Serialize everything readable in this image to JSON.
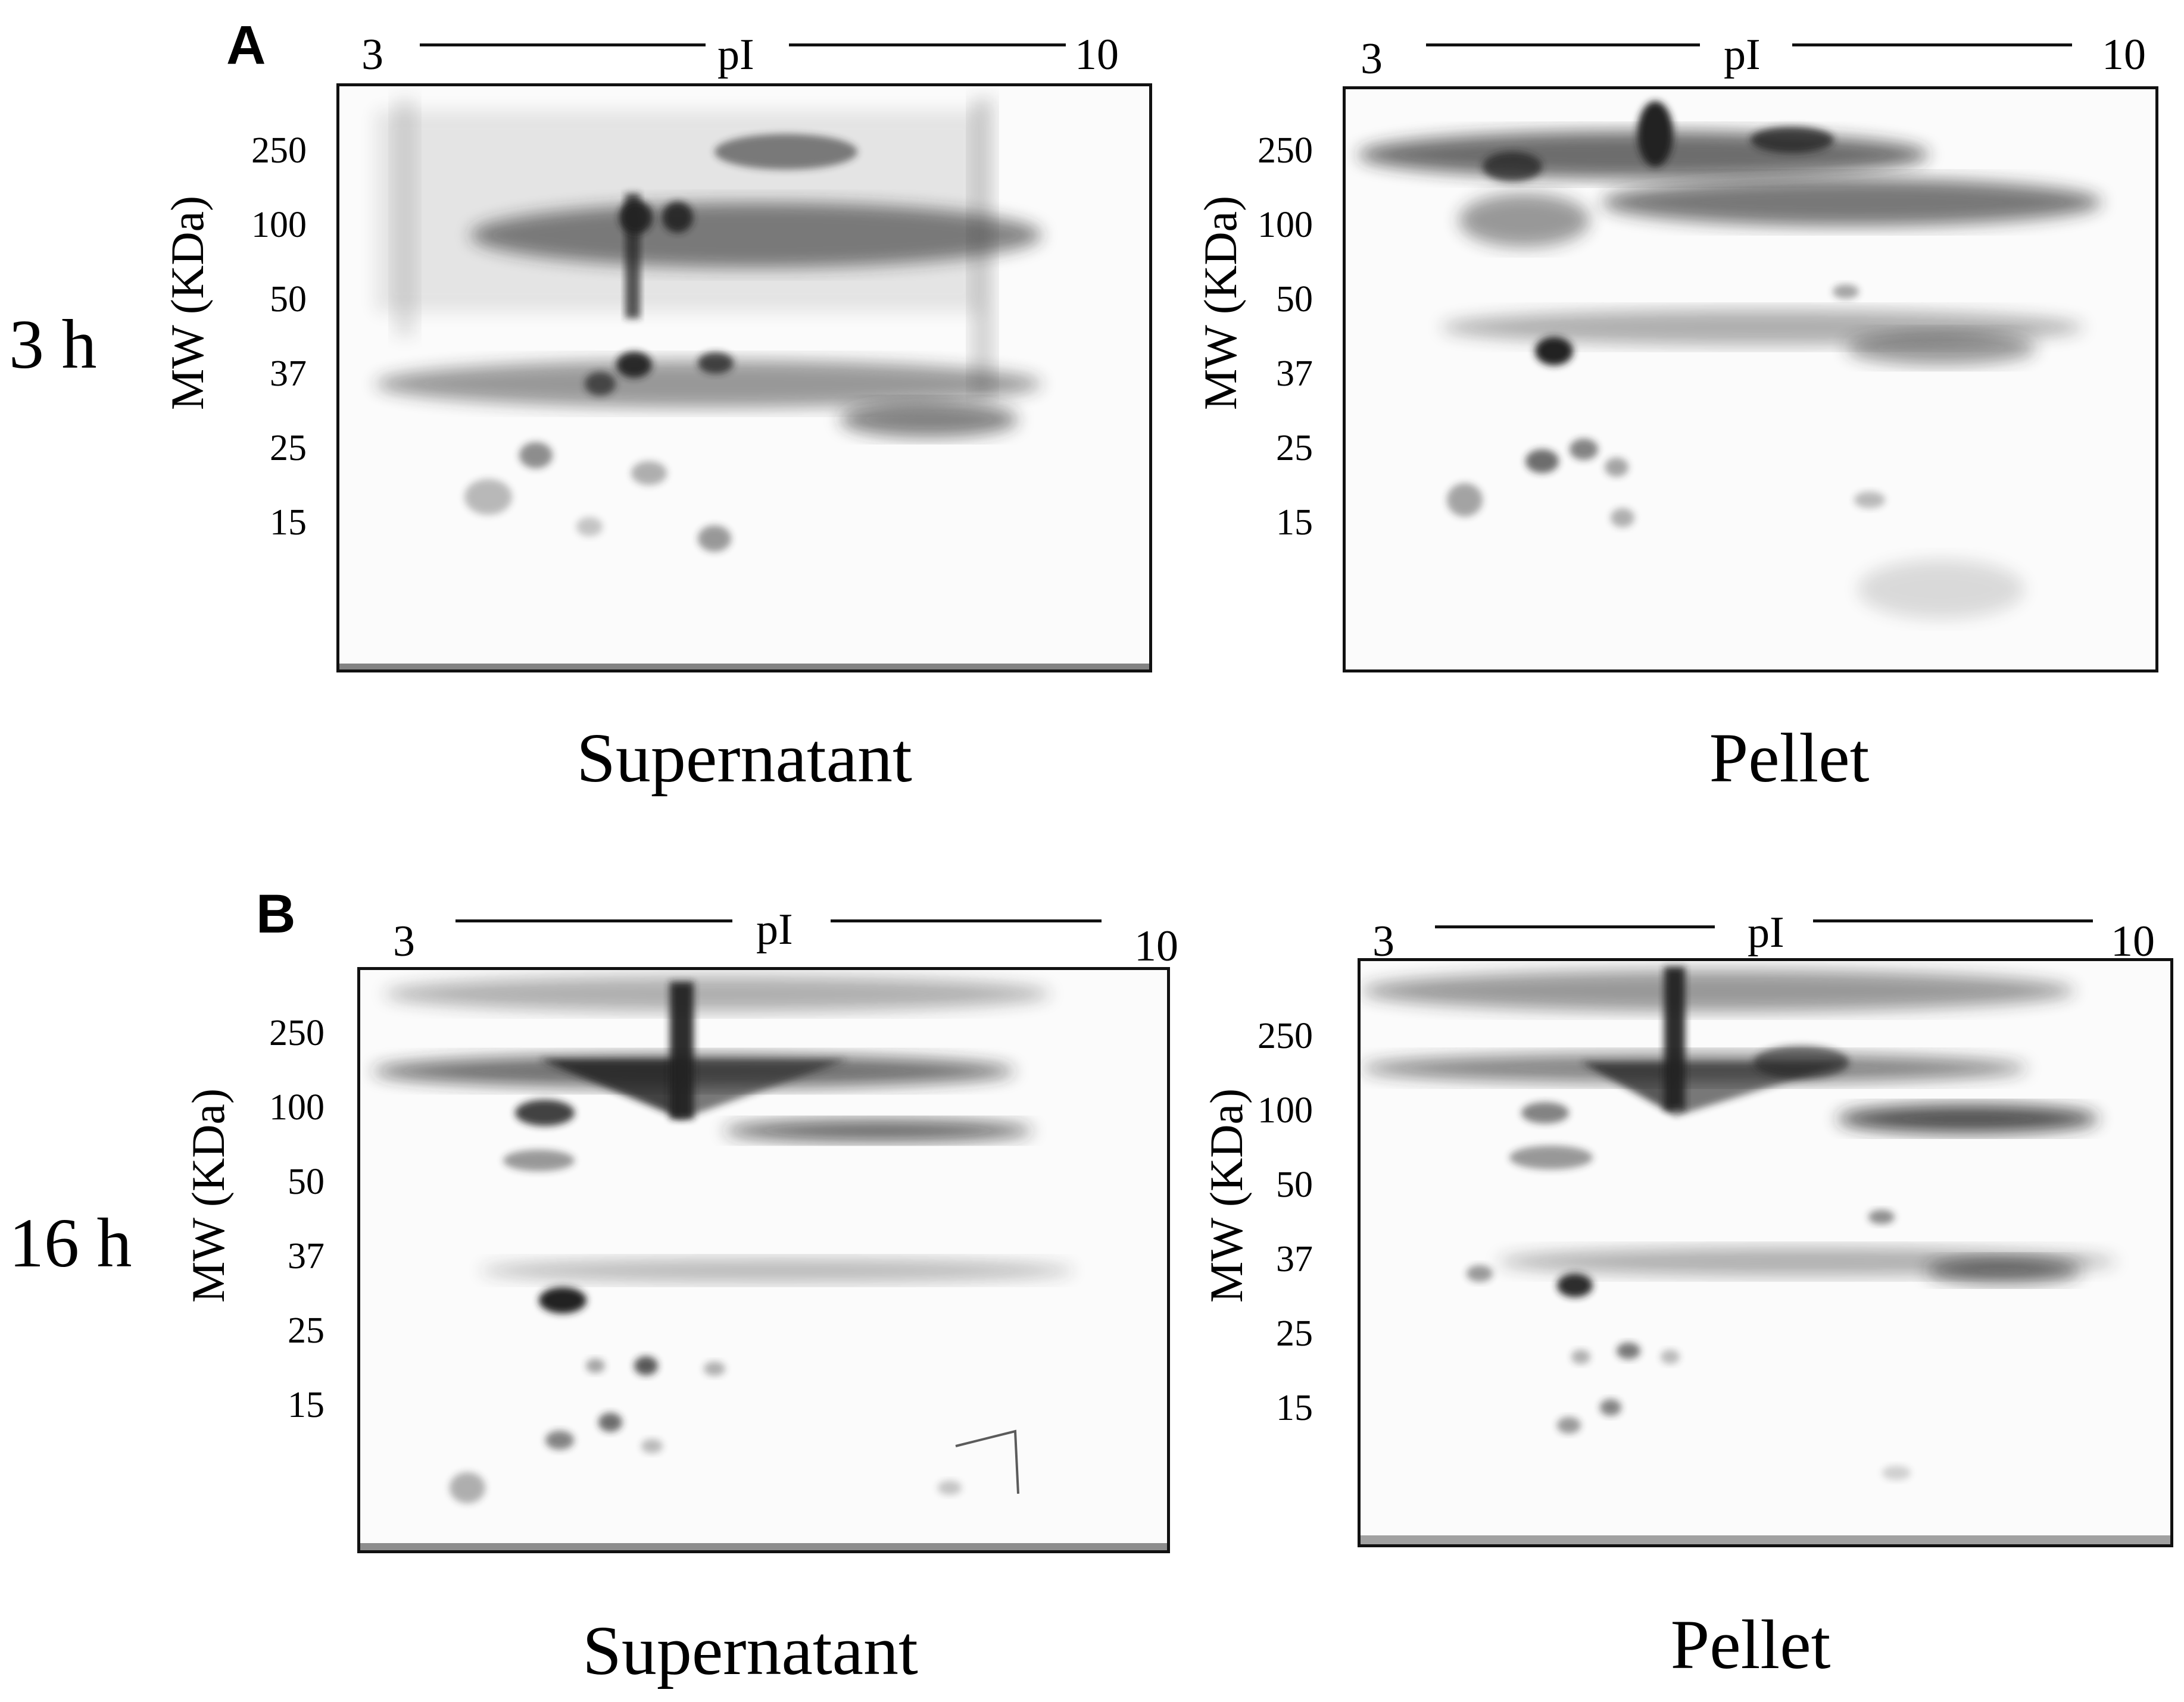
{
  "panels": [
    {
      "letter": "A",
      "time": "3 h",
      "gels": [
        {
          "fraction": "Supernatant",
          "pi": {
            "start": "3",
            "label": "pI",
            "end": "10"
          },
          "mw_axis_title": "MW (KDa)",
          "mw_ticks": [
            "250",
            "100",
            "50",
            "37",
            "25",
            "15"
          ]
        },
        {
          "fraction": "Pellet",
          "pi": {
            "start": "3",
            "label": "pI",
            "end": "10"
          },
          "mw_axis_title": "MW (KDa)",
          "mw_ticks": [
            "250",
            "100",
            "50",
            "37",
            "25",
            "15"
          ]
        }
      ]
    },
    {
      "letter": "B",
      "time": "16 h",
      "gels": [
        {
          "fraction": "Supernatant",
          "pi": {
            "start": "3",
            "label": "pI",
            "end": "10"
          },
          "mw_axis_title": "MW (KDa)",
          "mw_ticks": [
            "250",
            "100",
            "50",
            "37",
            "25",
            "15"
          ]
        },
        {
          "fraction": "Pellet",
          "pi": {
            "start": "3",
            "label": "pI",
            "end": "10"
          },
          "mw_axis_title": "MW (KDa)",
          "mw_ticks": [
            "250",
            "100",
            "50",
            "37",
            "25",
            "15"
          ]
        }
      ]
    }
  ],
  "colors": {
    "ink": "#111111",
    "gel_background": "#fbfbfb",
    "stain": "#202020"
  }
}
